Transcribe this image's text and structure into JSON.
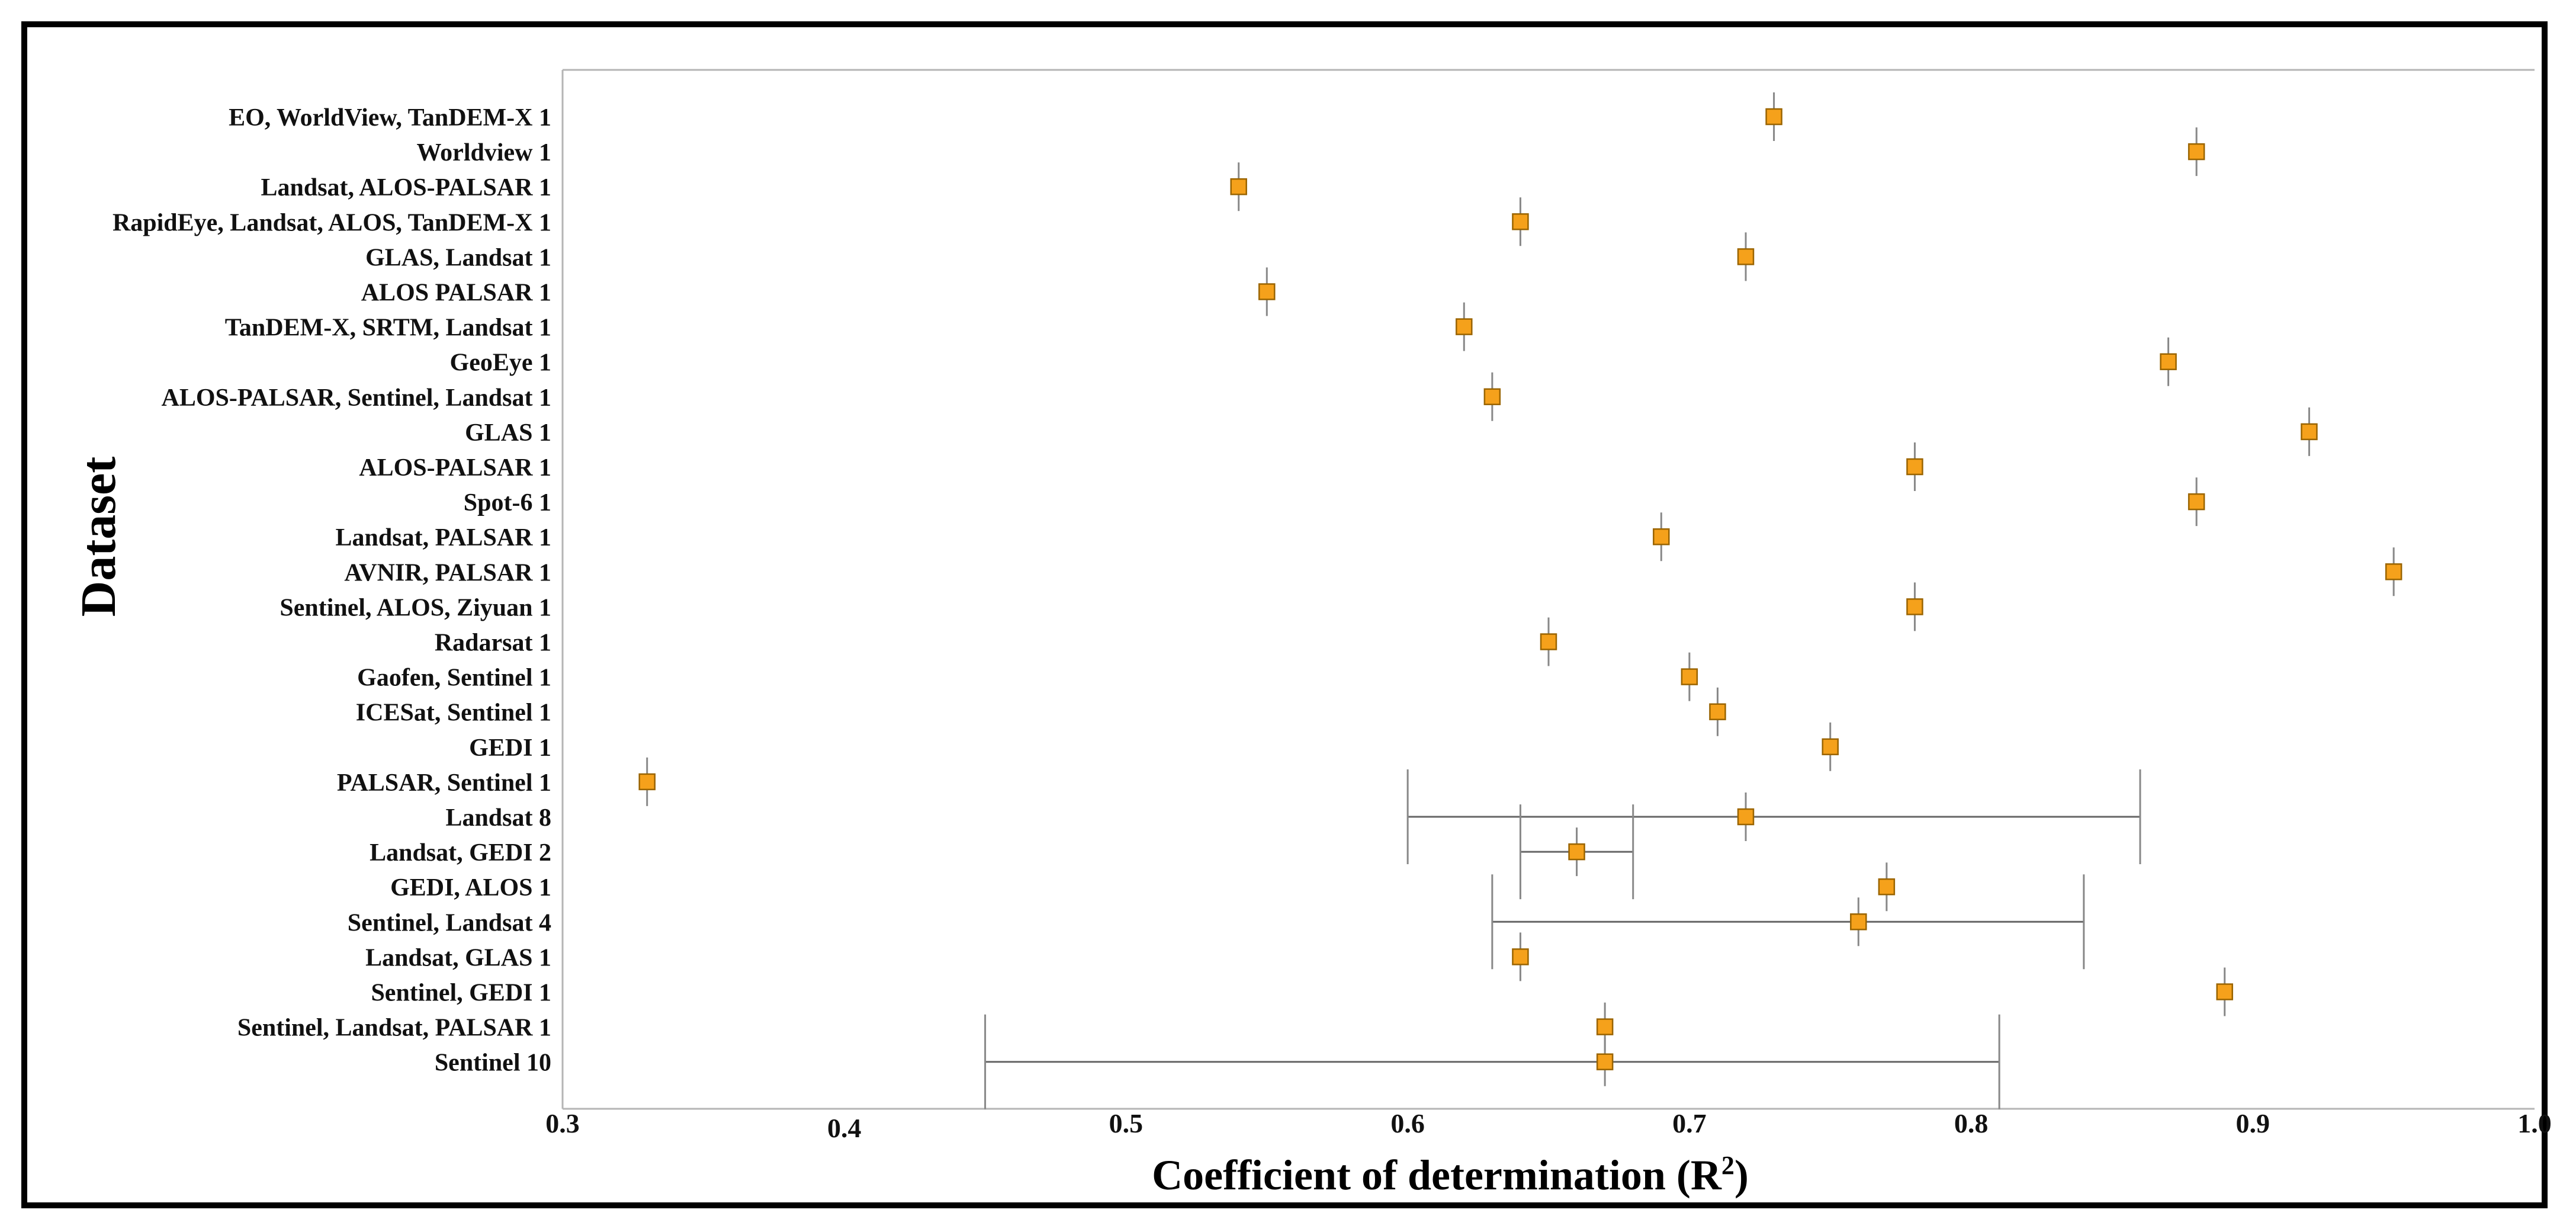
{
  "chart_data": {
    "type": "scatter",
    "title": "",
    "xlabel": "Coefficient of determination (R",
    "xlabel_sup": "2",
    "xlabel_end": ")",
    "ylabel": "Dataset",
    "xlim": [
      0.3,
      1.0
    ],
    "xticks": [
      {
        "value": 0.3,
        "label": "0.3"
      },
      {
        "value": 0.4,
        "label": "0.4"
      },
      {
        "value": 0.5,
        "label": "0.5"
      },
      {
        "value": 0.6,
        "label": "0.6"
      },
      {
        "value": 0.7,
        "label": "0.7"
      },
      {
        "value": 0.8,
        "label": "0.8"
      },
      {
        "value": 0.9,
        "label": "0.9"
      },
      {
        "value": 1.0,
        "label": "1.0"
      }
    ],
    "marker_color": "#f5a11b",
    "marker_edge_color": "#9a6400",
    "error_color": "#888888",
    "points": [
      {
        "label": "EO, WorldView, TanDEM-X 1",
        "r2": 0.73,
        "low": null,
        "high": null
      },
      {
        "label": "Worldview 1",
        "r2": 0.88,
        "low": null,
        "high": null
      },
      {
        "label": "Landsat, ALOS-PALSAR 1",
        "r2": 0.54,
        "low": null,
        "high": null
      },
      {
        "label": "RapidEye, Landsat, ALOS, TanDEM-X 1",
        "r2": 0.64,
        "low": null,
        "high": null
      },
      {
        "label": "GLAS, Landsat 1",
        "r2": 0.72,
        "low": null,
        "high": null
      },
      {
        "label": "ALOS PALSAR 1",
        "r2": 0.55,
        "low": null,
        "high": null
      },
      {
        "label": "TanDEM-X, SRTM, Landsat 1",
        "r2": 0.62,
        "low": null,
        "high": null
      },
      {
        "label": "GeoEye 1",
        "r2": 0.87,
        "low": null,
        "high": null
      },
      {
        "label": "ALOS-PALSAR, Sentinel, Landsat 1",
        "r2": 0.63,
        "low": null,
        "high": null
      },
      {
        "label": "GLAS 1",
        "r2": 0.92,
        "low": null,
        "high": null
      },
      {
        "label": "ALOS-PALSAR 1",
        "r2": 0.78,
        "low": null,
        "high": null
      },
      {
        "label": "Spot-6 1",
        "r2": 0.88,
        "low": null,
        "high": null
      },
      {
        "label": "Landsat, PALSAR 1",
        "r2": 0.69,
        "low": null,
        "high": null
      },
      {
        "label": "AVNIR, PALSAR 1",
        "r2": 0.95,
        "low": null,
        "high": null
      },
      {
        "label": "Sentinel, ALOS, Ziyuan 1",
        "r2": 0.78,
        "low": null,
        "high": null
      },
      {
        "label": "Radarsat 1",
        "r2": 0.65,
        "low": null,
        "high": null
      },
      {
        "label": "Gaofen, Sentinel 1",
        "r2": 0.7,
        "low": null,
        "high": null
      },
      {
        "label": "ICESat, Sentinel 1",
        "r2": 0.71,
        "low": null,
        "high": null
      },
      {
        "label": "GEDI 1",
        "r2": 0.75,
        "low": null,
        "high": null
      },
      {
        "label": "PALSAR, Sentinel 1",
        "r2": 0.33,
        "low": null,
        "high": null
      },
      {
        "label": "Landsat 8",
        "r2": 0.72,
        "low": 0.6,
        "high": 0.86
      },
      {
        "label": "Landsat, GEDI 2",
        "r2": 0.66,
        "low": 0.64,
        "high": 0.68
      },
      {
        "label": "GEDI, ALOS 1",
        "r2": 0.77,
        "low": null,
        "high": null
      },
      {
        "label": "Sentinel, Landsat 4",
        "r2": 0.76,
        "low": 0.63,
        "high": 0.84
      },
      {
        "label": "Landsat, GLAS 1",
        "r2": 0.64,
        "low": null,
        "high": null
      },
      {
        "label": "Sentinel, GEDI 1",
        "r2": 0.89,
        "low": null,
        "high": null
      },
      {
        "label": "Sentinel, Landsat, PALSAR 1",
        "r2": 0.67,
        "low": null,
        "high": null
      },
      {
        "label": "Sentinel 10",
        "r2": 0.67,
        "low": 0.45,
        "high": 0.81
      }
    ]
  }
}
